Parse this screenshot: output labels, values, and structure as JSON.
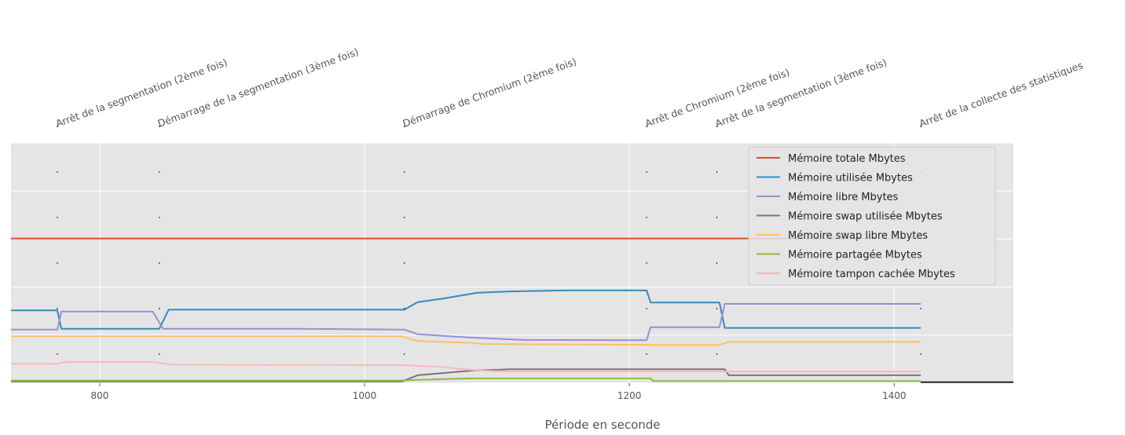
{
  "chart_data": {
    "type": "line",
    "title": "",
    "xlabel": "Période en seconde",
    "ylabel": "",
    "xlim": [
      733,
      1490
    ],
    "ylim": [
      0,
      100
    ],
    "x_ticks": [
      800,
      1000,
      1200,
      1400
    ],
    "y_ticks": [
      0,
      20,
      40,
      60,
      80,
      100
    ],
    "grid": true,
    "legend_position": "upper right",
    "series": [
      {
        "name": "Mémoire totale Mbytes",
        "color": "#e24a33",
        "points": [
          [
            733,
            60.2
          ],
          [
            1420,
            60.2
          ]
        ]
      },
      {
        "name": "Mémoire utilisée Mbytes",
        "color": "#348abd",
        "points": [
          [
            733,
            30.3
          ],
          [
            768,
            30.3
          ],
          [
            771,
            22.6
          ],
          [
            845,
            22.6
          ],
          [
            852,
            30.6
          ],
          [
            1030,
            30.6
          ],
          [
            1040,
            33.7
          ],
          [
            1060,
            35.3
          ],
          [
            1085,
            37.6
          ],
          [
            1110,
            38.2
          ],
          [
            1150,
            38.6
          ],
          [
            1213,
            38.6
          ],
          [
            1216,
            33.6
          ],
          [
            1268,
            33.6
          ],
          [
            1272,
            23.0
          ],
          [
            1420,
            23.0
          ]
        ]
      },
      {
        "name": "Mémoire libre Mbytes",
        "color": "#988ed5",
        "points": [
          [
            733,
            22.3
          ],
          [
            768,
            22.3
          ],
          [
            771,
            29.8
          ],
          [
            840,
            29.8
          ],
          [
            848,
            22.6
          ],
          [
            950,
            22.6
          ],
          [
            1030,
            22.3
          ],
          [
            1040,
            20.4
          ],
          [
            1080,
            19.0
          ],
          [
            1120,
            18.0
          ],
          [
            1200,
            17.9
          ],
          [
            1213,
            17.9
          ],
          [
            1216,
            23.3
          ],
          [
            1268,
            23.3
          ],
          [
            1272,
            33.0
          ],
          [
            1420,
            33.0
          ]
        ]
      },
      {
        "name": "Mémoire swap utilisée Mbytes",
        "color": "#777777",
        "points": [
          [
            733,
            0.7
          ],
          [
            1028,
            0.7
          ],
          [
            1040,
            3.3
          ],
          [
            1080,
            5.2
          ],
          [
            1110,
            5.8
          ],
          [
            1216,
            5.8
          ],
          [
            1272,
            5.8
          ],
          [
            1275,
            3.3
          ],
          [
            1420,
            3.3
          ]
        ]
      },
      {
        "name": "Mémoire swap libre Mbytes",
        "color": "#fbc15e",
        "points": [
          [
            733,
            19.5
          ],
          [
            1028,
            19.5
          ],
          [
            1040,
            17.5
          ],
          [
            1080,
            16.8
          ],
          [
            1090,
            16.3
          ],
          [
            1200,
            16.0
          ],
          [
            1216,
            15.9
          ],
          [
            1268,
            15.9
          ],
          [
            1275,
            17.2
          ],
          [
            1420,
            17.2
          ]
        ]
      },
      {
        "name": "Mémoire partagée Mbytes",
        "color": "#8eba42",
        "points": [
          [
            733,
            1.1
          ],
          [
            1028,
            1.1
          ],
          [
            1040,
            1.4
          ],
          [
            1080,
            2.0
          ],
          [
            1216,
            2.0
          ],
          [
            1218,
            0.9
          ],
          [
            1420,
            0.9
          ]
        ]
      },
      {
        "name": "Mémoire tampon cachée Mbytes",
        "color": "#ffb5b8",
        "points": [
          [
            733,
            8.1
          ],
          [
            768,
            8.1
          ],
          [
            775,
            8.8
          ],
          [
            840,
            8.8
          ],
          [
            855,
            7.7
          ],
          [
            1030,
            7.5
          ],
          [
            1055,
            6.9
          ],
          [
            1085,
            5.3
          ],
          [
            1110,
            4.8
          ],
          [
            1216,
            4.8
          ],
          [
            1420,
            4.8
          ]
        ]
      }
    ],
    "extra_lines": [
      {
        "color": "#222222",
        "points": [
          [
            1420,
            0.4
          ],
          [
            1490,
            0.4
          ]
        ]
      }
    ],
    "annotations": [
      {
        "x": 768,
        "label": "Arrêt de la segmentation (2ème fois)"
      },
      {
        "x": 845,
        "label": "Démarrage de la segmentation (3ème fois)"
      },
      {
        "x": 1030,
        "label": "Démarrage de Chromium (2ème fois)"
      },
      {
        "x": 1213,
        "label": "Arrêt de Chromium (2ème fois)"
      },
      {
        "x": 1266,
        "label": "Arrêt de la segmentation (3ème fois)"
      },
      {
        "x": 1420,
        "label": "Arrêt de la collecte des statistiques"
      }
    ]
  }
}
